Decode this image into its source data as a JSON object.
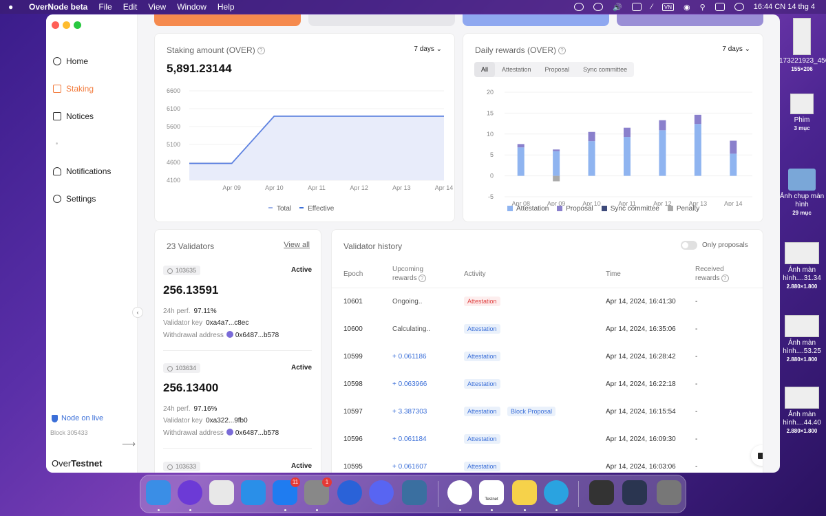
{
  "menubar": {
    "app": "OverNode beta",
    "menus": [
      "File",
      "Edit",
      "View",
      "Window",
      "Help"
    ],
    "datetime": "16:44 CN 14 thg 4",
    "badge": "VN"
  },
  "sidebar": {
    "items": [
      {
        "label": "Home",
        "icon": "globe-icon"
      },
      {
        "label": "Staking",
        "icon": "staking-icon"
      },
      {
        "label": "Notices",
        "icon": "megaphone-icon"
      },
      {
        "label": "Notifications",
        "icon": "bell-icon"
      },
      {
        "label": "Settings",
        "icon": "gear-icon"
      }
    ],
    "node_status": "Node on live",
    "block": "Block 305433",
    "brand_a": "Over",
    "brand_b": "Testnet"
  },
  "staking": {
    "title": "Staking amount (OVER)",
    "range": "7 days",
    "amount": "5,891.23144",
    "legend": [
      "Total",
      "Effective"
    ]
  },
  "rewards": {
    "title": "Daily rewards (OVER)",
    "range": "7 days",
    "tabs": [
      "All",
      "Attestation",
      "Proposal",
      "Sync committee"
    ],
    "legend": [
      "Attestation",
      "Proposal",
      "Sync committee",
      "Penalty"
    ]
  },
  "validators": {
    "title": "23 Validators",
    "view_all": "View all",
    "perf_label": "24h perf.",
    "key_label": "Validator key",
    "wd_label": "Withdrawal address",
    "items": [
      {
        "id": "103635",
        "status": "Active",
        "amount": "256.13591",
        "perf": "97.11%",
        "key": "0xa4a7...c8ec",
        "wd": "0x6487...b578"
      },
      {
        "id": "103634",
        "status": "Active",
        "amount": "256.13400",
        "perf": "97.16%",
        "key": "0xa322...9fb0",
        "wd": "0x6487...b578"
      },
      {
        "id": "103633",
        "status": "Active"
      }
    ]
  },
  "history": {
    "title": "Validator history",
    "toggle_label": "Only proposals",
    "headers": {
      "epoch": "Epoch",
      "upcoming": "Upcoming rewards",
      "activity": "Activity",
      "time": "Time",
      "received": "Received rewards"
    },
    "rows": [
      {
        "epoch": "10601",
        "upcoming": "Ongoing..",
        "activity": "Attestation",
        "extra": "",
        "time": "Apr 14, 2024, 16:41:30",
        "received": "-"
      },
      {
        "epoch": "10600",
        "upcoming": "Calculating..",
        "activity": "Attestation",
        "extra": "",
        "time": "Apr 14, 2024, 16:35:06",
        "received": "-"
      },
      {
        "epoch": "10599",
        "upcoming": "+ 0.061186",
        "activity": "Attestation",
        "extra": "",
        "time": "Apr 14, 2024, 16:28:42",
        "received": "-"
      },
      {
        "epoch": "10598",
        "upcoming": "+ 0.063966",
        "activity": "Attestation",
        "extra": "",
        "time": "Apr 14, 2024, 16:22:18",
        "received": "-"
      },
      {
        "epoch": "10597",
        "upcoming": "+ 3.387303",
        "activity": "Attestation",
        "extra": "Block Proposal",
        "time": "Apr 14, 2024, 16:15:54",
        "received": "-"
      },
      {
        "epoch": "10596",
        "upcoming": "+ 0.061184",
        "activity": "Attestation",
        "extra": "",
        "time": "Apr 14, 2024, 16:09:30",
        "received": "-"
      },
      {
        "epoch": "10595",
        "upcoming": "+ 0.061607",
        "activity": "Attestation",
        "extra": "",
        "time": "Apr 14, 2024, 16:03:06",
        "received": "-"
      }
    ]
  },
  "desktop": [
    {
      "name": "173221923_4562...79_n",
      "sub": "155×206"
    },
    {
      "name": "Phim",
      "sub": "3 mục"
    },
    {
      "name": "Ảnh chụp màn hình",
      "sub": "29 mục"
    },
    {
      "name": "Ảnh màn hình....31.34",
      "sub": "2.880×1.800"
    },
    {
      "name": "Ảnh màn hình....53.25",
      "sub": "2.880×1.800"
    },
    {
      "name": "Ảnh màn hình....44.40",
      "sub": "2.880×1.800"
    }
  ],
  "dock": {
    "apps": [
      "Finder",
      "Siri",
      "Launchpad",
      "Safari",
      "App Store",
      "System Settings",
      "Sync",
      "Discord",
      "QuickTime",
      "Chrome",
      "Testnet",
      "Notes",
      "Telegram",
      "Recent 1",
      "Recent 2",
      "Trash"
    ],
    "badges": {
      "App Store": "11",
      "System Settings": "1"
    },
    "testnet_label": "Testnet"
  },
  "colors": {
    "orange": "#f27a3b",
    "blue": "#3b6fd8",
    "attestation": "#8fb4f0",
    "proposal": "#8a80cc",
    "sync": "#3d4a7a",
    "penalty": "#aaaaaa"
  },
  "chart_data": [
    {
      "type": "area",
      "title": "Staking amount (OVER)",
      "x": [
        "Apr 08",
        "Apr 09",
        "Apr 10",
        "Apr 11",
        "Apr 12",
        "Apr 13",
        "Apr 14"
      ],
      "xticks": [
        "Apr 09",
        "Apr 10",
        "Apr 11",
        "Apr 12",
        "Apr 13",
        "Apr 14"
      ],
      "series": [
        {
          "name": "Total",
          "values": [
            4570,
            4570,
            5891,
            5891,
            5891,
            5891,
            5891
          ]
        },
        {
          "name": "Effective",
          "values": [
            4570,
            4570,
            5891,
            5891,
            5891,
            5891,
            5891
          ]
        }
      ],
      "yticks": [
        4100,
        4600,
        5100,
        5600,
        6100,
        6600
      ],
      "ylim": [
        4100,
        6600
      ],
      "legend": "bottom"
    },
    {
      "type": "bar",
      "title": "Daily rewards (OVER)",
      "categories": [
        "Apr 08",
        "Apr 09",
        "Apr 10",
        "Apr 11",
        "Apr 12",
        "Apr 13",
        "Apr 14"
      ],
      "series": [
        {
          "name": "Attestation",
          "values": [
            6.8,
            5.9,
            8.3,
            9.3,
            10.9,
            12.4,
            5.3
          ]
        },
        {
          "name": "Proposal",
          "values": [
            0.8,
            0.4,
            2.2,
            2.2,
            2.4,
            2.2,
            3.1
          ]
        },
        {
          "name": "Sync committee",
          "values": [
            0,
            0,
            0,
            0,
            0,
            0,
            0
          ]
        },
        {
          "name": "Penalty",
          "values": [
            0,
            -1.3,
            0,
            0,
            0,
            0,
            0
          ]
        }
      ],
      "yticks": [
        -5,
        0,
        5,
        10,
        15,
        20
      ],
      "ylim": [
        -5,
        20
      ],
      "legend": "bottom"
    }
  ]
}
